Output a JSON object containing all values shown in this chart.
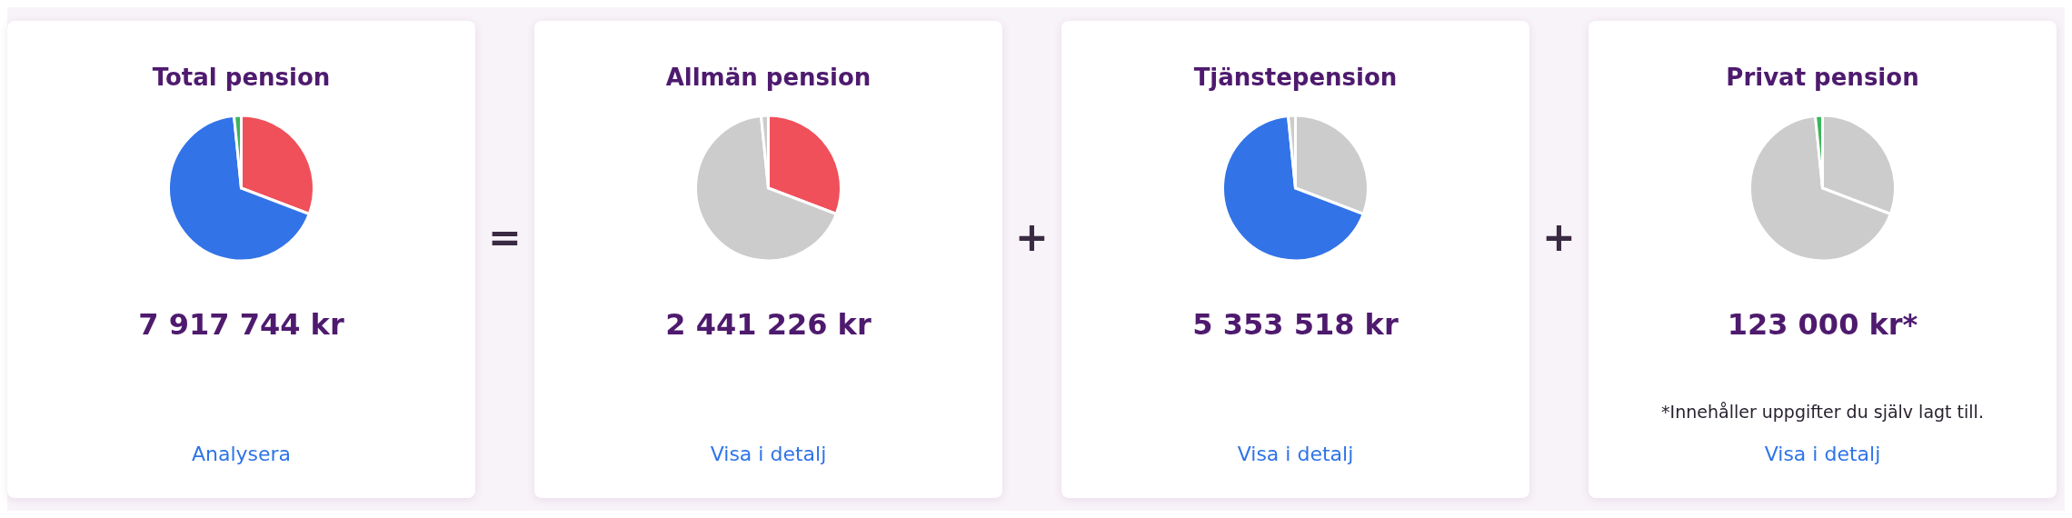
{
  "chart_data": [
    {
      "type": "pie",
      "title": "Total pension",
      "categories": [
        null,
        null,
        null
      ],
      "values": [
        30.8,
        67.6,
        1.6
      ],
      "colors": [
        "#ef505a",
        "#3373e8",
        "#3cb45c"
      ],
      "annotations": [
        "7 917 744 kr",
        "Analysera"
      ]
    },
    {
      "type": "other",
      "title": "="
    },
    {
      "type": "pie",
      "title": "Allmän pension",
      "categories": [
        null,
        null,
        null
      ],
      "values": [
        30.8,
        67.6,
        1.6
      ],
      "colors": [
        "#ef505a",
        "#cccccc",
        "#cccccc"
      ],
      "annotations": [
        "2 441 226 kr",
        "Visa i detalj"
      ]
    },
    {
      "type": "other",
      "title": "+"
    },
    {
      "type": "pie",
      "title": "Tjänstepension",
      "categories": [
        null,
        null,
        null
      ],
      "values": [
        30.8,
        67.6,
        1.6
      ],
      "colors": [
        "#cccccc",
        "#3373e8",
        "#cccccc"
      ],
      "annotations": [
        "5 353 518 kr",
        "Visa i detalj"
      ]
    },
    {
      "type": "other",
      "title": "+"
    },
    {
      "type": "pie",
      "title": "Privat pension",
      "categories": [
        null,
        null,
        null
      ],
      "values": [
        30.8,
        67.6,
        1.6
      ],
      "colors": [
        "#cccccc",
        "#cccccc",
        "#3cb45c"
      ],
      "annotations": [
        "123 000 kr*",
        "*Innehåller uppgifter du själv lagt till.",
        "Visa i detalj"
      ]
    }
  ]
}
